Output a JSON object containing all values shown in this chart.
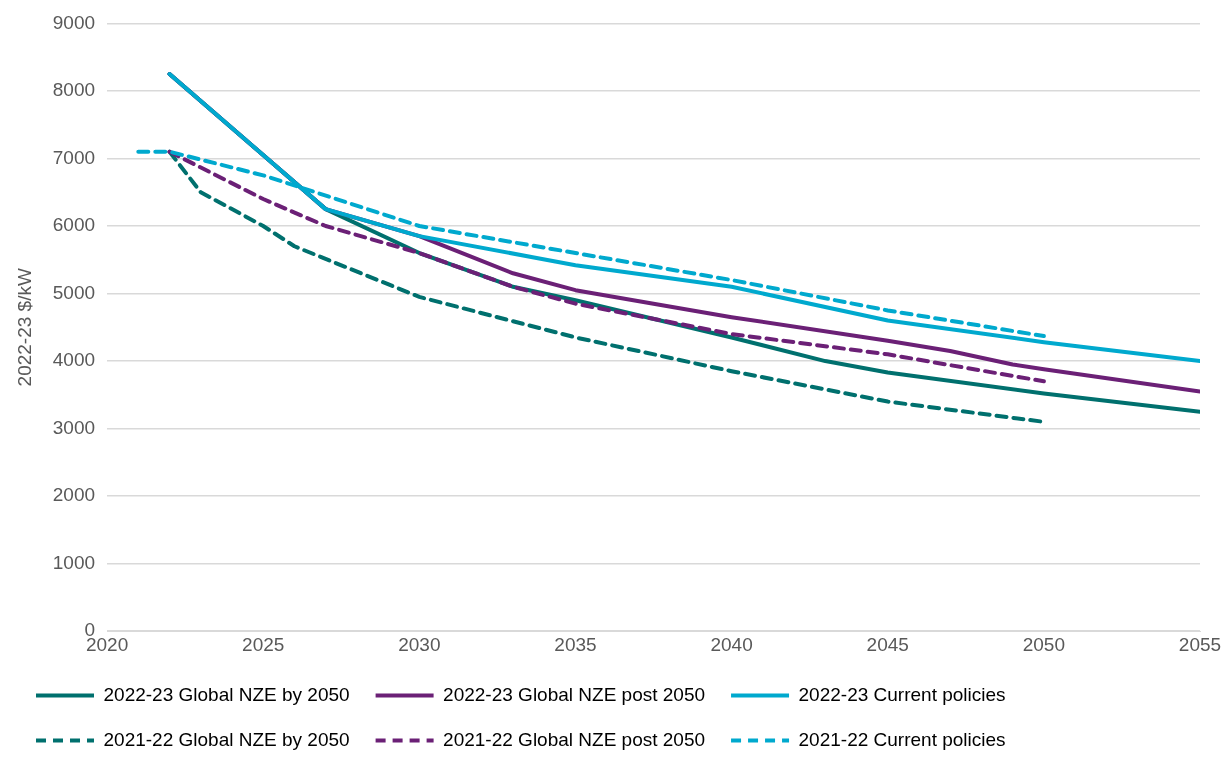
{
  "chart_data": {
    "type": "line",
    "ylabel": "2022-23 $/kW",
    "xlim": [
      2020,
      2055
    ],
    "xticks": [
      2020,
      2025,
      2030,
      2035,
      2040,
      2045,
      2050,
      2055
    ],
    "ylim": [
      0,
      9000
    ],
    "yticks": [
      0,
      1000,
      2000,
      3000,
      4000,
      5000,
      6000,
      7000,
      8000,
      9000
    ],
    "grid": "y",
    "legend": "bottom",
    "marker": "none",
    "series": [
      {
        "name": "2022-23 Global NZE by 2050",
        "color": "#00706e",
        "line_style": "solid",
        "x": [
          2022,
          2027,
          2030,
          2033,
          2035,
          2040,
          2043,
          2045,
          2050,
          2055
        ],
        "values": [
          8250,
          6250,
          5600,
          5100,
          4900,
          4350,
          4000,
          3830,
          3520,
          3250
        ]
      },
      {
        "name": "2022-23 Global NZE post 2050",
        "color": "#6b2076",
        "line_style": "solid",
        "x": [
          2022,
          2027,
          2030,
          2033,
          2035,
          2040,
          2045,
          2047,
          2049,
          2050,
          2055
        ],
        "values": [
          8250,
          6250,
          5850,
          5300,
          5050,
          4650,
          4300,
          4150,
          3950,
          3880,
          3550
        ]
      },
      {
        "name": "2022-23 Current policies",
        "color": "#00a9ce",
        "line_style": "solid",
        "x": [
          2022,
          2027,
          2030,
          2035,
          2040,
          2045,
          2050,
          2055
        ],
        "values": [
          8250,
          6250,
          5850,
          5420,
          5100,
          4600,
          4280,
          4000
        ]
      },
      {
        "name": "2021-22 Global NZE by 2050",
        "color": "#00706e",
        "line_style": "dashed",
        "x": [
          2022,
          2023,
          2025,
          2026,
          2030,
          2035,
          2040,
          2045,
          2050
        ],
        "values": [
          7100,
          6500,
          6000,
          5700,
          4950,
          4350,
          3850,
          3400,
          3100
        ]
      },
      {
        "name": "2021-22 Global NZE post 2050",
        "color": "#6b2076",
        "line_style": "dashed",
        "x": [
          2022,
          2025,
          2027,
          2030,
          2033,
          2035,
          2040,
          2045,
          2050
        ],
        "values": [
          7100,
          6400,
          6000,
          5600,
          5100,
          4850,
          4400,
          4100,
          3700
        ]
      },
      {
        "name": "2021-22 Current policies",
        "color": "#00a9ce",
        "line_style": "dashed",
        "x": [
          2021,
          2022,
          2025,
          2030,
          2035,
          2040,
          2045,
          2050
        ],
        "values": [
          7100,
          7100,
          6750,
          6000,
          5600,
          5200,
          4750,
          4370
        ]
      }
    ]
  }
}
